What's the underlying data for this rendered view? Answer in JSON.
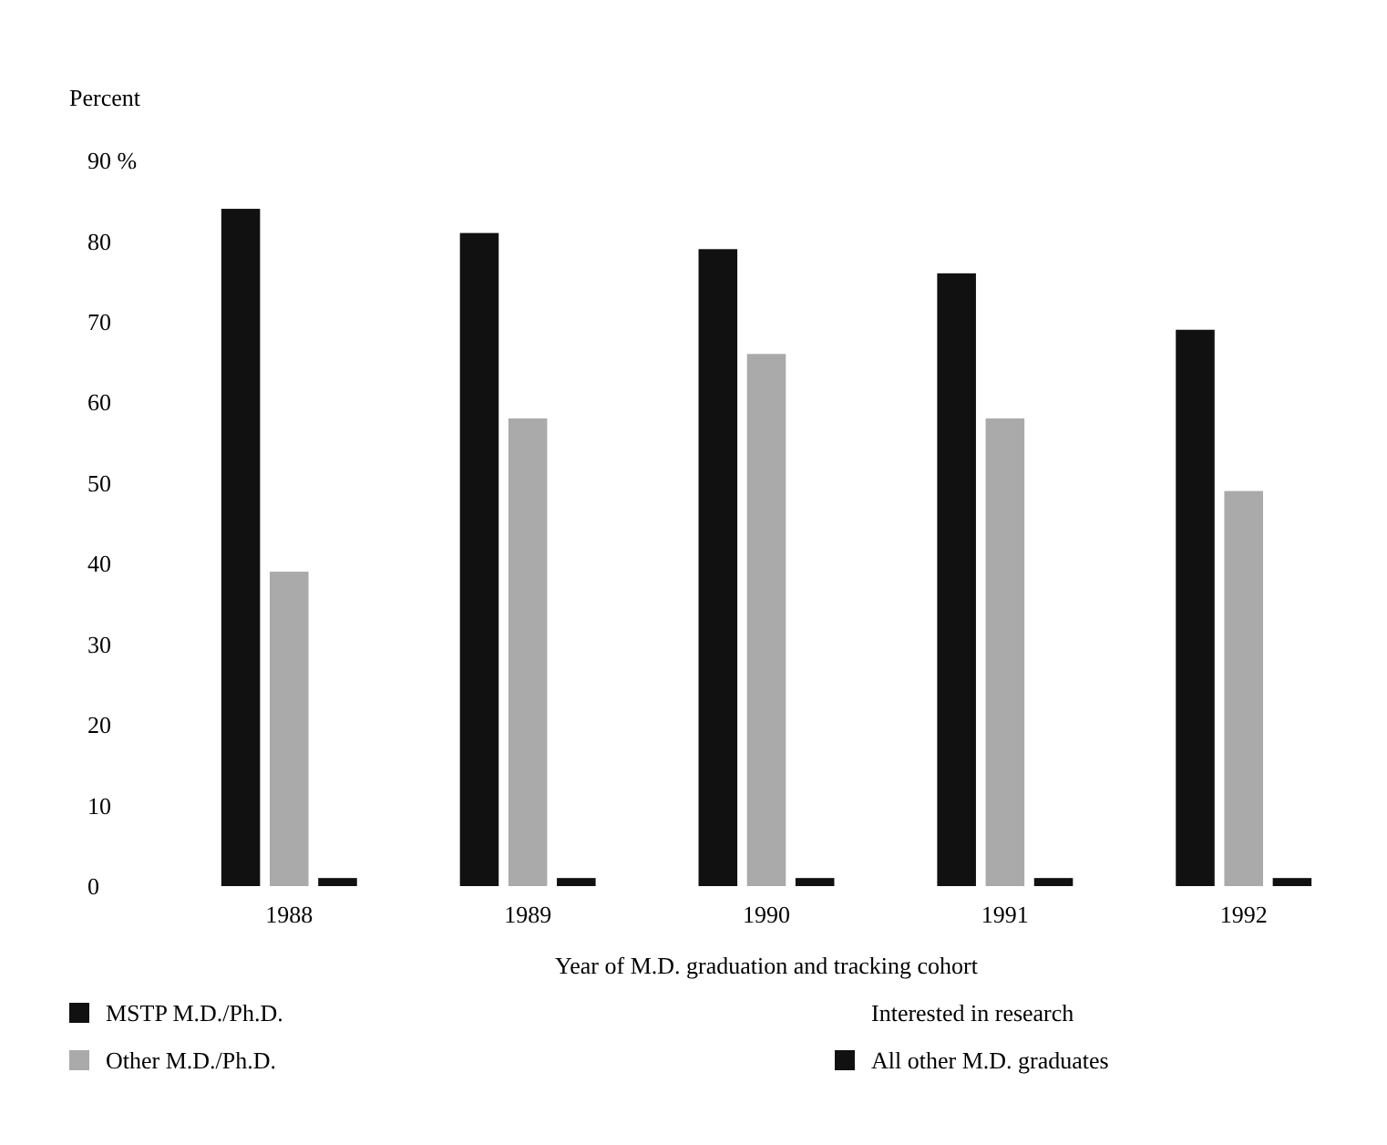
{
  "chart_data": {
    "type": "bar",
    "ylabel": "Percent",
    "xlabel": "Year of M.D. graduation and tracking cohort",
    "legend_title": "Interested in research",
    "categories": [
      "1988",
      "1989",
      "1990",
      "1991",
      "1992"
    ],
    "series": [
      {
        "name": "MSTP  M.D./Ph.D.",
        "color": "#111111",
        "values": [
          84,
          81,
          79,
          76,
          69
        ]
      },
      {
        "name": "Other M.D./Ph.D.",
        "color": "#aaaaaa",
        "values": [
          39,
          58,
          66,
          58,
          49
        ]
      },
      {
        "name": "All other M.D. graduates",
        "color": "#111111",
        "values": [
          1,
          1,
          1,
          1,
          1
        ]
      }
    ],
    "ylim": [
      0,
      90
    ],
    "yticks": [
      0,
      10,
      20,
      30,
      40,
      50,
      60,
      70,
      80,
      {
        "value": 90,
        "label": "90 %"
      }
    ],
    "grid": false,
    "legend": "bottom"
  }
}
